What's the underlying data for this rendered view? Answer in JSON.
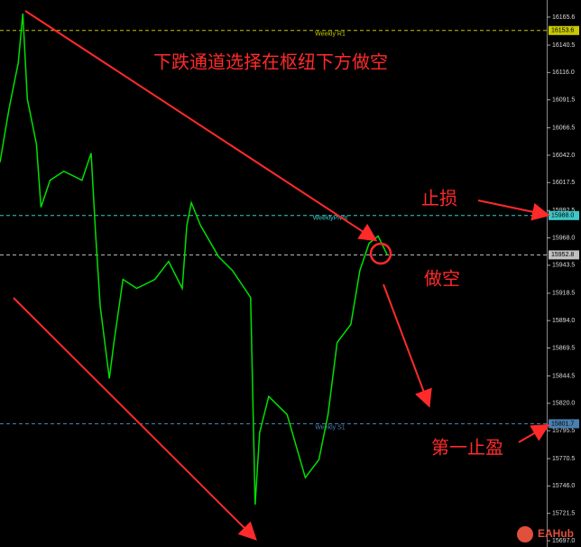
{
  "chart_data": {
    "type": "line",
    "annotations": [
      "下跌通道选择在枢纽下方做空",
      "止损",
      "做空",
      "第一止盈"
    ],
    "brand": "EAHub",
    "x": [
      0,
      2,
      4,
      5,
      6,
      8,
      9,
      11,
      14,
      18,
      20,
      21,
      22,
      24,
      25,
      27,
      30,
      34,
      37,
      40,
      41,
      42,
      44,
      48,
      51,
      55,
      56,
      57,
      59,
      63,
      67,
      70,
      72,
      74,
      77,
      79,
      81,
      83,
      85
    ],
    "series": [
      {
        "color": "#00e000",
        "values": [
          16035.7,
          16084,
          16124.4,
          16168.8,
          16092.2,
          16051.9,
          15995.4,
          16019.6,
          16027.7,
          16019.6,
          16043.8,
          15971.2,
          15906.7,
          15842.2,
          15874.4,
          15930.9,
          15922.8,
          15930.9,
          15947,
          15922.8,
          15979.3,
          15999.5,
          15979.3,
          15951.1,
          15938.9,
          15914.7,
          15729.3,
          15793.8,
          15826.1,
          15810,
          15753.5,
          15769.6,
          15810,
          15874.4,
          15890.6,
          15938.9,
          15963.1,
          15969.6,
          15952.8
        ]
      }
    ],
    "xlim": [
      0,
      120
    ],
    "ylim": [
      15691.4,
      16180.9
    ],
    "yticks": [
      16165.6,
      16140.5,
      {
        "value": 16116.0,
        "label": "16116.0"
      },
      16091.5,
      16066.5,
      {
        "value": 16042.0,
        "label": "16042.0"
      },
      16017.5,
      15992.5,
      {
        "value": 15968.0,
        "label": "15968.0"
      },
      15943.5,
      15918.5,
      {
        "value": 15894.0,
        "label": "15894.0"
      },
      15869.5,
      15844.5,
      {
        "value": 15820.0,
        "label": "15820.0"
      },
      15795.5,
      15770.5,
      {
        "value": 15746.0,
        "label": "15746.0"
      },
      15721.5,
      {
        "value": 15697.0,
        "label": "15697.0"
      }
    ],
    "levels": [
      {
        "name": "Weekly R1",
        "value": 16153.6,
        "color": "#c8c800"
      },
      {
        "name": "WeeklyPivot",
        "value": 15988.0,
        "value_label": "15988.0",
        "color": "#3fc8c8"
      },
      {
        "value": 15952.8,
        "color": "#c0c0c0"
      },
      {
        "name": "Weekly S1",
        "value": 15801.7,
        "color": "#4a7fb0"
      }
    ]
  }
}
